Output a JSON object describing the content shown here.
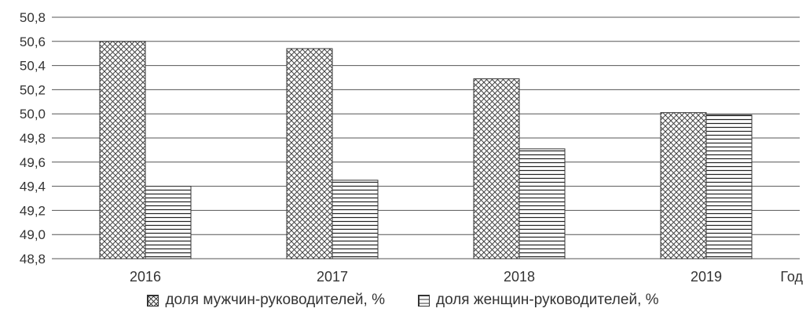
{
  "chart_data": {
    "type": "bar",
    "categories": [
      "2016",
      "2017",
      "2018",
      "2019"
    ],
    "series": [
      {
        "name": "доля мужчин-руководителей, %",
        "values": [
          50.6,
          50.54,
          50.29,
          50.01
        ],
        "pattern": "crosshatch"
      },
      {
        "name": "доля женщин-руководителей, %",
        "values": [
          49.4,
          49.45,
          49.71,
          49.99
        ],
        "pattern": "horizontal-lines"
      }
    ],
    "xlabel": "Год",
    "ylabel": "",
    "ylim": [
      48.8,
      50.8
    ],
    "yticks": [
      "48,8",
      "49,0",
      "49,2",
      "49,4",
      "49,6",
      "49,8",
      "50,0",
      "50,2",
      "50,4",
      "50,6",
      "50,8"
    ],
    "grid": true,
    "legend_position": "bottom"
  },
  "legend": {
    "men_label": "доля мужчин-руководителей, %",
    "women_label": "доля женщин-руководителей, %"
  }
}
